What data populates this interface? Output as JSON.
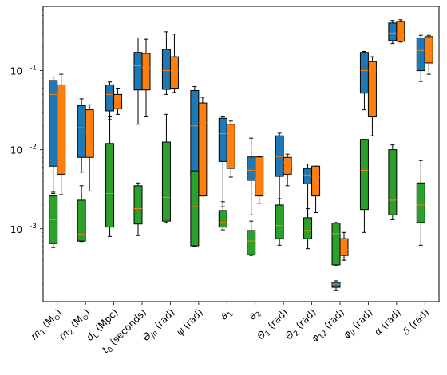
{
  "chart_data": {
    "type": "box",
    "yscale": "log",
    "ylim": [
      0.00012,
      0.65
    ],
    "y_major_ticks": [
      0.001,
      0.01,
      0.1
    ],
    "y_tick_labels": [
      "10^-3",
      "10^-2",
      "10^-1"
    ],
    "categories": [
      {
        "base": "m",
        "sub": "1",
        "unit": " (M",
        "unit_sub": "⊙",
        "tail": ")"
      },
      {
        "base": "m",
        "sub": "2",
        "unit": " (M",
        "unit_sub": "⊙",
        "tail": ")"
      },
      {
        "base": "d",
        "sub": "L",
        "unit": " (Mpc)",
        "unit_sub": "",
        "tail": ""
      },
      {
        "base": "t",
        "sub": "0",
        "unit": " (seconds)",
        "unit_sub": "",
        "tail": ""
      },
      {
        "base": "Θ",
        "sub": "jn",
        "unit": " (rad)",
        "unit_sub": "",
        "tail": ""
      },
      {
        "base": "ψ",
        "sub": "",
        "unit": " (rad)",
        "unit_sub": "",
        "tail": ""
      },
      {
        "base": "a",
        "sub": "1",
        "unit": "",
        "unit_sub": "",
        "tail": ""
      },
      {
        "base": "a",
        "sub": "2",
        "unit": "",
        "unit_sub": "",
        "tail": ""
      },
      {
        "base": "Θ",
        "sub": "1",
        "unit": " (rad)",
        "unit_sub": "",
        "tail": ""
      },
      {
        "base": "Θ",
        "sub": "2",
        "unit": " (rad)",
        "unit_sub": "",
        "tail": ""
      },
      {
        "base": "φ",
        "sub": "12",
        "unit": " (rad)",
        "unit_sub": "",
        "tail": ""
      },
      {
        "base": "φ",
        "sub": "jl",
        "unit": " (rad)",
        "unit_sub": "",
        "tail": ""
      },
      {
        "base": "α",
        "sub": "",
        "unit": " (rad)",
        "unit_sub": "",
        "tail": ""
      },
      {
        "base": "δ",
        "sub": "",
        "unit": " (rad)",
        "unit_sub": "",
        "tail": ""
      }
    ],
    "series": [
      {
        "color": "#1f77b4",
        "boxes": [
          {
            "min": 0.0029,
            "q1": 0.0062,
            "median": 0.05,
            "q3": 0.075,
            "max": 0.083
          },
          {
            "min": 0.0052,
            "q1": 0.008,
            "median": 0.019,
            "q3": 0.036,
            "max": 0.044
          },
          {
            "min": 0.024,
            "q1": 0.031,
            "median": 0.05,
            "q3": 0.066,
            "max": 0.072
          },
          {
            "min": 0.021,
            "q1": 0.057,
            "median": 0.115,
            "q3": 0.17,
            "max": 0.26
          },
          {
            "min": 0.05,
            "q1": 0.058,
            "median": 0.1,
            "q3": 0.185,
            "max": 0.31
          },
          {
            "min": 0.0022,
            "q1": 0.0048,
            "median": 0.02,
            "q3": 0.056,
            "max": 0.063
          },
          {
            "min": 0.0019,
            "q1": 0.0071,
            "median": 0.016,
            "q3": 0.025,
            "max": 0.026
          },
          {
            "min": 0.0015,
            "q1": 0.0041,
            "median": 0.0055,
            "q3": 0.0081,
            "max": 0.014
          },
          {
            "min": 0.0013,
            "q1": 0.0046,
            "median": 0.0082,
            "q3": 0.015,
            "max": 0.0162
          },
          {
            "min": 0.0012,
            "q1": 0.0037,
            "median": 0.0048,
            "q3": 0.0058,
            "max": 0.0066
          },
          {
            "min": 0.000165,
            "q1": 0.000182,
            "median": 0.0002,
            "q3": 0.00021,
            "max": 0.00022
          },
          {
            "min": 0.032,
            "q1": 0.052,
            "median": 0.1,
            "q3": 0.17,
            "max": 0.175
          },
          {
            "min": 0.22,
            "q1": 0.24,
            "median": 0.3,
            "q3": 0.4,
            "max": 0.43
          },
          {
            "min": 0.073,
            "q1": 0.1,
            "median": 0.18,
            "q3": 0.26,
            "max": 0.28
          }
        ]
      },
      {
        "color": "#ff7f0e",
        "boxes": [
          {
            "min": 0.0027,
            "q1": 0.0049,
            "median": 0.045,
            "q3": 0.066,
            "max": 0.09
          },
          {
            "min": 0.003,
            "q1": 0.008,
            "median": 0.017,
            "q3": 0.032,
            "max": 0.037
          },
          {
            "min": 0.028,
            "q1": 0.033,
            "median": 0.045,
            "q3": 0.05,
            "max": 0.06
          },
          {
            "min": 0.026,
            "q1": 0.057,
            "median": 0.11,
            "q3": 0.165,
            "max": 0.25
          },
          {
            "min": 0.053,
            "q1": 0.06,
            "median": 0.1,
            "q3": 0.15,
            "max": 0.29
          },
          {
            "min": 0.0026,
            "q1": 0.0026,
            "median": 0.022,
            "q3": 0.039,
            "max": 0.046
          },
          {
            "min": 0.0045,
            "q1": 0.0058,
            "median": 0.013,
            "q3": 0.021,
            "max": 0.023
          },
          {
            "min": 0.0021,
            "q1": 0.0026,
            "median": 0.0043,
            "q3": 0.0081,
            "max": 0.0082
          },
          {
            "min": 0.0035,
            "q1": 0.0049,
            "median": 0.0069,
            "q3": 0.008,
            "max": 0.0088
          },
          {
            "min": 0.0016,
            "q1": 0.0026,
            "median": 0.0045,
            "q3": 0.0062,
            "max": 0.0062
          },
          {
            "min": 0.0004,
            "q1": 0.00046,
            "median": 0.00055,
            "q3": 0.00075,
            "max": 0.0009
          },
          {
            "min": 0.015,
            "q1": 0.026,
            "median": 0.1,
            "q3": 0.13,
            "max": 0.15
          },
          {
            "min": 0.23,
            "q1": 0.235,
            "median": 0.28,
            "q3": 0.42,
            "max": 0.44
          },
          {
            "min": 0.09,
            "q1": 0.125,
            "median": 0.19,
            "q3": 0.27,
            "max": 0.28
          }
        ]
      },
      {
        "color": "#2ca02c",
        "boxes": [
          {
            "min": 0.00058,
            "q1": 0.00065,
            "median": 0.0013,
            "q3": 0.0026,
            "max": 0.0028
          },
          {
            "min": 0.00069,
            "q1": 0.0007,
            "median": 0.00085,
            "q3": 0.0023,
            "max": 0.0035
          },
          {
            "min": 0.0008,
            "q1": 0.00105,
            "median": 0.0028,
            "q3": 0.012,
            "max": 0.026
          },
          {
            "min": 0.00082,
            "q1": 0.00115,
            "median": 0.0018,
            "q3": 0.0035,
            "max": 0.0038
          },
          {
            "min": 0.0012,
            "q1": 0.00125,
            "median": 0.0025,
            "q3": 0.0125,
            "max": 0.028
          },
          {
            "min": 0.0006,
            "q1": 0.00061,
            "median": 0.0019,
            "q3": 0.0054,
            "max": 0.0054
          },
          {
            "min": 0.00097,
            "q1": 0.00105,
            "median": 0.0012,
            "q3": 0.0017,
            "max": 0.0022
          },
          {
            "min": 0.00046,
            "q1": 0.00047,
            "median": 0.0007,
            "q3": 0.00095,
            "max": 0.00125
          },
          {
            "min": 0.00062,
            "q1": 0.00075,
            "median": 0.0011,
            "q3": 0.002,
            "max": 0.0024
          },
          {
            "min": 0.00056,
            "q1": 0.00075,
            "median": 0.00095,
            "q3": 0.00138,
            "max": 0.0018
          },
          {
            "min": 0.00034,
            "q1": 0.00035,
            "median": 0.00087,
            "q3": 0.00118,
            "max": 0.0012
          },
          {
            "min": 0.0009,
            "q1": 0.00175,
            "median": 0.0055,
            "q3": 0.0135,
            "max": 0.0135
          },
          {
            "min": 0.0013,
            "q1": 0.0015,
            "median": 0.0023,
            "q3": 0.01,
            "max": 0.0115
          },
          {
            "min": 0.00062,
            "q1": 0.0012,
            "median": 0.002,
            "q3": 0.0038,
            "max": 0.0073
          }
        ]
      }
    ],
    "median_color": "#ff7f0e",
    "title": "",
    "xlabel": "",
    "ylabel": "",
    "grid": false,
    "legend": "none"
  }
}
